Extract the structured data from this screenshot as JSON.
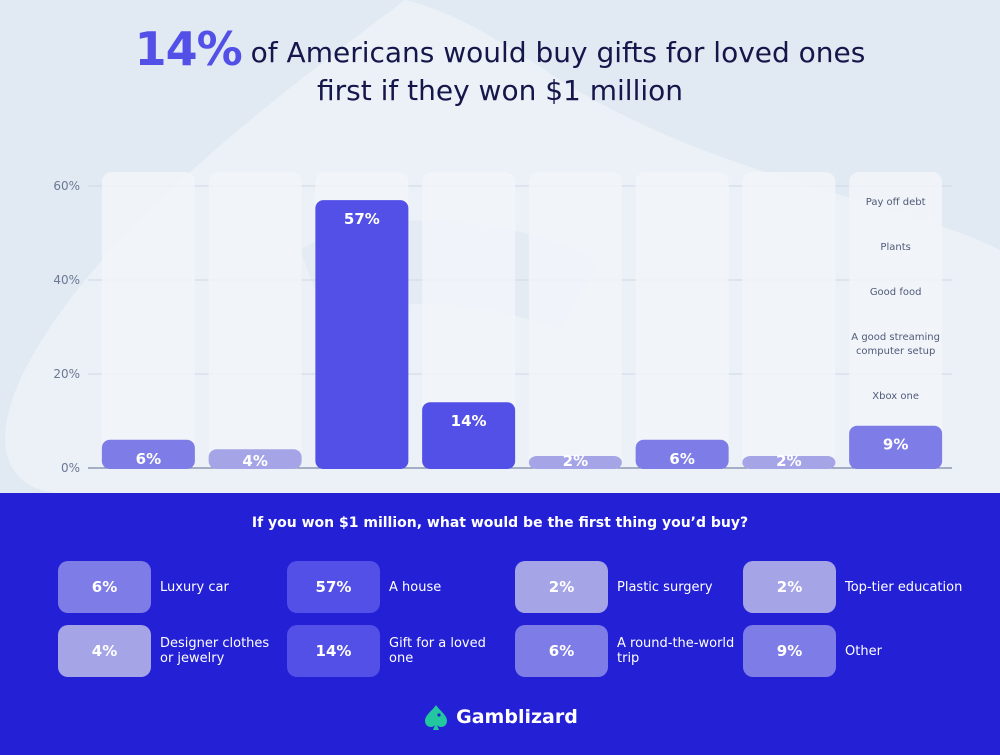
{
  "headline": {
    "highlight": "14%",
    "line1": "of Americans would buy gifts for loved ones",
    "line2": "first if they won $1 million"
  },
  "colors": {
    "accent": "#5250e6",
    "bar_light": "#a5a4e6",
    "bar_mid": "#7e7ce6",
    "bar_dark": "#5250e6",
    "bottom_bg": "#2320d6"
  },
  "chart_data": {
    "type": "bar",
    "title": "14% of Americans would buy gifts for loved ones first if they won $1 million",
    "categories": [
      "Luxury car",
      "Designer clothes or jewelry",
      "A house",
      "Gift for a loved one",
      "Plastic surgery",
      "A round-the-world trip",
      "Top-tier education",
      "Other"
    ],
    "values": [
      6,
      4,
      57,
      14,
      2,
      6,
      2,
      9
    ],
    "value_labels": [
      "6%",
      "4%",
      "57%",
      "14%",
      "2%",
      "6%",
      "2%",
      "9%"
    ],
    "shades": [
      "mid",
      "light",
      "dark",
      "dark",
      "light",
      "mid",
      "light",
      "mid"
    ],
    "yticks": [
      {
        "value": 0,
        "label": "0%"
      },
      {
        "value": 20,
        "label": "20%"
      },
      {
        "value": 40,
        "label": "40%"
      },
      {
        "value": 60,
        "label": "60%"
      }
    ],
    "ylim": [
      0,
      60
    ],
    "grid": true,
    "xlabel": "",
    "ylabel": "",
    "other_annotations": [
      "Pay off debt",
      "Plants",
      "Good food",
      "A good streaming computer setup",
      "Xbox one"
    ]
  },
  "legend": {
    "question": "If you won $1 million, what would be the first thing you’d buy?",
    "items": [
      {
        "value": "6%",
        "label": "Luxury car",
        "shade": "mid"
      },
      {
        "value": "57%",
        "label": "A house",
        "shade": "dark"
      },
      {
        "value": "2%",
        "label": "Plastic surgery",
        "shade": "light"
      },
      {
        "value": "2%",
        "label": "Top-tier education",
        "shade": "light"
      },
      {
        "value": "4%",
        "label": "Designer clothes or jewelry",
        "shade": "light"
      },
      {
        "value": "14%",
        "label": "Gift for a loved one",
        "shade": "dark"
      },
      {
        "value": "6%",
        "label": "A round-the-world trip",
        "shade": "mid"
      },
      {
        "value": "9%",
        "label": "Other",
        "shade": "mid"
      }
    ]
  },
  "brand": {
    "name": "Gamblizard",
    "icon": "lizard-spade-icon"
  }
}
